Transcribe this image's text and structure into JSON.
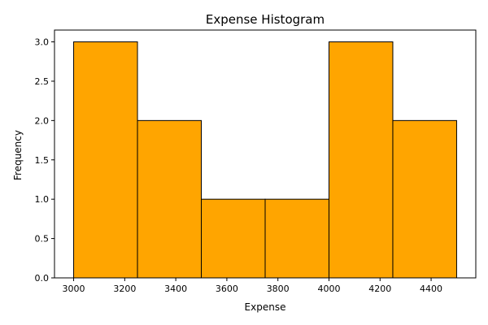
{
  "chart_data": {
    "type": "bar",
    "title": "Expense Histogram",
    "xlabel": "Expense",
    "ylabel": "Frequency",
    "bins": [
      {
        "x0": 3000,
        "x1": 3250,
        "count": 3
      },
      {
        "x0": 3250,
        "x1": 3500,
        "count": 2
      },
      {
        "x0": 3500,
        "x1": 3750,
        "count": 1
      },
      {
        "x0": 3750,
        "x1": 4000,
        "count": 1
      },
      {
        "x0": 4000,
        "x1": 4250,
        "count": 3
      },
      {
        "x0": 4250,
        "x1": 4500,
        "count": 2
      }
    ],
    "xlim": [
      2925,
      4575
    ],
    "ylim": [
      0,
      3.15
    ],
    "xticks": [
      3000,
      3200,
      3400,
      3600,
      3800,
      4000,
      4200,
      4400
    ],
    "yticks": [
      0.0,
      0.5,
      1.0,
      1.5,
      2.0,
      2.5,
      3.0
    ],
    "bar_color": "#FFA500",
    "edge_color": "#000000",
    "grid": false
  }
}
